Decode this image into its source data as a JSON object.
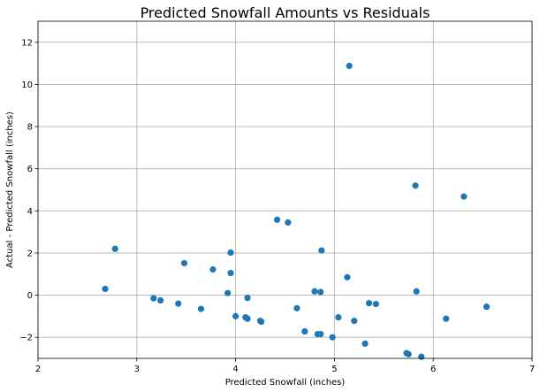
{
  "chart_data": {
    "type": "scatter",
    "title": "Predicted Snowfall Amounts vs Residuals",
    "xlabel": "Predicted Snowfall (inches)",
    "ylabel": "Actual - Predicted Snowfall (inches)",
    "xlim": [
      2,
      7
    ],
    "ylim": [
      -3,
      13
    ],
    "xticks": [
      2,
      3,
      4,
      5,
      6,
      7
    ],
    "yticks": [
      -2,
      0,
      2,
      4,
      6,
      8,
      10,
      12
    ],
    "grid": true,
    "marker_color": "#1f77b4",
    "points": [
      {
        "x": 2.68,
        "y": 0.3
      },
      {
        "x": 2.78,
        "y": 2.2
      },
      {
        "x": 3.17,
        "y": -0.15
      },
      {
        "x": 3.24,
        "y": -0.25
      },
      {
        "x": 3.42,
        "y": -0.4
      },
      {
        "x": 3.48,
        "y": 1.52
      },
      {
        "x": 3.65,
        "y": -0.65
      },
      {
        "x": 3.77,
        "y": 1.22
      },
      {
        "x": 3.92,
        "y": 0.1
      },
      {
        "x": 3.95,
        "y": 2.02
      },
      {
        "x": 3.95,
        "y": 1.05
      },
      {
        "x": 4.0,
        "y": -1.0
      },
      {
        "x": 4.1,
        "y": -1.05
      },
      {
        "x": 4.12,
        "y": -1.12
      },
      {
        "x": 4.12,
        "y": -0.13
      },
      {
        "x": 4.25,
        "y": -1.22
      },
      {
        "x": 4.26,
        "y": -1.26
      },
      {
        "x": 4.42,
        "y": 3.58
      },
      {
        "x": 4.53,
        "y": 3.45
      },
      {
        "x": 4.62,
        "y": -0.62
      },
      {
        "x": 4.7,
        "y": -1.72
      },
      {
        "x": 4.8,
        "y": 0.18
      },
      {
        "x": 4.83,
        "y": -1.85
      },
      {
        "x": 4.86,
        "y": 0.15
      },
      {
        "x": 4.86,
        "y": -1.85
      },
      {
        "x": 4.87,
        "y": 2.12
      },
      {
        "x": 4.98,
        "y": -2.0
      },
      {
        "x": 5.04,
        "y": -1.05
      },
      {
        "x": 5.13,
        "y": 0.85
      },
      {
        "x": 5.15,
        "y": 10.88
      },
      {
        "x": 5.2,
        "y": -1.22
      },
      {
        "x": 5.31,
        "y": -2.3
      },
      {
        "x": 5.35,
        "y": -0.38
      },
      {
        "x": 5.42,
        "y": -0.42
      },
      {
        "x": 5.73,
        "y": -2.75
      },
      {
        "x": 5.75,
        "y": -2.8
      },
      {
        "x": 5.82,
        "y": 5.2
      },
      {
        "x": 5.83,
        "y": 0.18
      },
      {
        "x": 5.88,
        "y": -2.92
      },
      {
        "x": 6.13,
        "y": -1.12
      },
      {
        "x": 6.31,
        "y": 4.68
      },
      {
        "x": 6.54,
        "y": -0.55
      }
    ]
  }
}
